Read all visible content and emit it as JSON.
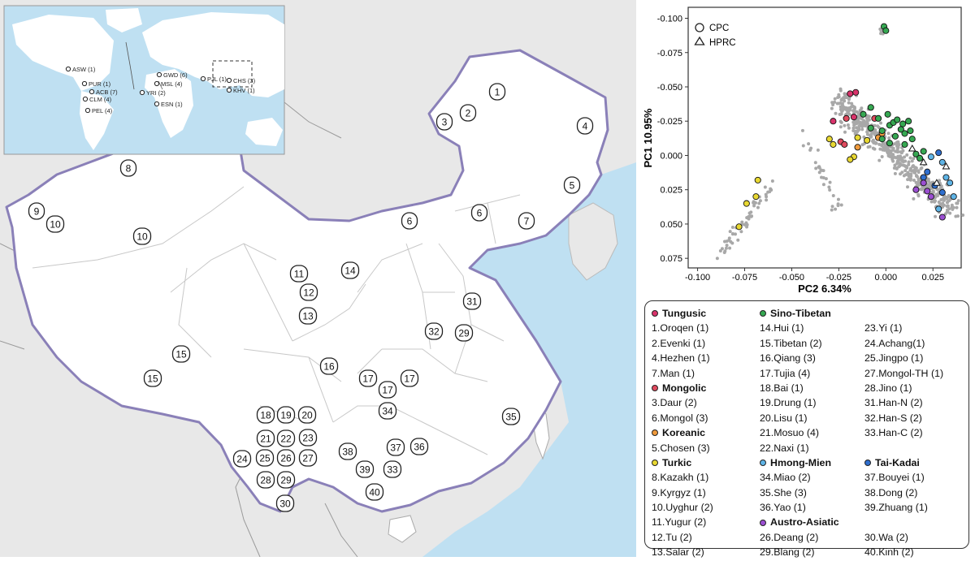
{
  "map": {
    "inset_samples": [
      {
        "id": "asw",
        "label": "ASW (1)"
      },
      {
        "id": "pur",
        "label": "PUR (1)"
      },
      {
        "id": "acb",
        "label": "ACB (7)"
      },
      {
        "id": "clm",
        "label": "CLM (4)"
      },
      {
        "id": "pel",
        "label": "PEL (4)"
      },
      {
        "id": "gwd",
        "label": "GWD (6)"
      },
      {
        "id": "msl",
        "label": "MSL (4)"
      },
      {
        "id": "yri",
        "label": "YRI (2)"
      },
      {
        "id": "esn",
        "label": "ESN (1)"
      },
      {
        "id": "pjl",
        "label": "PJL (1)"
      },
      {
        "id": "chs",
        "label": "CHS (3)"
      },
      {
        "id": "khv",
        "label": "KHV (1)"
      }
    ],
    "markers": [
      "1",
      "2",
      "3",
      "4",
      "5",
      "6",
      "6",
      "7",
      "8",
      "9",
      "10",
      "10",
      "11",
      "12",
      "13",
      "14",
      "15",
      "15",
      "16",
      "17",
      "17",
      "17",
      "18",
      "19",
      "20",
      "21",
      "22",
      "23",
      "24",
      "25",
      "26",
      "27",
      "28",
      "29",
      "30",
      "31",
      "32",
      "29",
      "33",
      "34",
      "35",
      "36",
      "37",
      "38",
      "39",
      "40"
    ]
  },
  "chart_data": {
    "type": "scatter",
    "xlabel": "PC2  6.34%",
    "ylabel": "PC1  10.95%",
    "x_ticks": [
      "-0.100",
      "-0.075",
      "-0.050",
      "-0.025",
      "0.000",
      "0.025"
    ],
    "y_ticks": [
      "-0.100",
      "-0.075",
      "-0.050",
      "-0.025",
      "0.000",
      "0.025",
      "0.050",
      "0.075"
    ],
    "xlim": [
      -0.105,
      0.04
    ],
    "ylim": [
      -0.108,
      0.082
    ],
    "y_inverted": true,
    "shape_legend": [
      {
        "shape": "circle",
        "label": "CPC"
      },
      {
        "shape": "triangle",
        "label": "HPRC"
      }
    ],
    "group_colors": {
      "Tungusic": "#d9336b",
      "Mongolic": "#e04a5e",
      "Sino-Tibetan": "#36a852",
      "Koreanic": "#ef9a3c",
      "Turkic": "#e8d832",
      "Hmong-Mien": "#5fb4e6",
      "Tai-Kadai": "#2f6fcf",
      "Austro-Asiatic": "#9b4fd1"
    },
    "background_color": "#a8a8a8",
    "series": [
      {
        "name": "Tungusic",
        "points": [
          [
            -0.028,
            -0.025
          ],
          [
            -0.019,
            -0.045
          ],
          [
            -0.016,
            -0.046
          ],
          [
            -0.017,
            -0.028
          ]
        ]
      },
      {
        "name": "Mongolic",
        "points": [
          [
            -0.021,
            -0.027
          ],
          [
            -0.024,
            -0.01
          ],
          [
            -0.022,
            -0.008
          ],
          [
            -0.006,
            -0.027
          ]
        ]
      },
      {
        "name": "Koreanic",
        "points": [
          [
            -0.015,
            -0.006
          ],
          [
            -0.004,
            -0.013
          ],
          [
            -0.002,
            -0.016
          ]
        ]
      },
      {
        "name": "Turkic",
        "points": [
          [
            -0.068,
            0.018
          ],
          [
            -0.069,
            0.03
          ],
          [
            -0.074,
            0.035
          ],
          [
            -0.078,
            0.052
          ],
          [
            -0.017,
            0.001
          ],
          [
            -0.019,
            0.003
          ],
          [
            -0.028,
            -0.008
          ],
          [
            -0.03,
            -0.012
          ],
          [
            -0.015,
            -0.013
          ],
          [
            -0.01,
            -0.011
          ]
        ]
      },
      {
        "name": "Sino-Tibetan",
        "points": [
          [
            -0.001,
            -0.094
          ],
          [
            0.0,
            -0.091
          ],
          [
            -0.012,
            -0.03
          ],
          [
            -0.008,
            -0.035
          ],
          [
            -0.004,
            -0.027
          ],
          [
            -0.002,
            -0.018
          ],
          [
            0.002,
            -0.022
          ],
          [
            0.004,
            -0.024
          ],
          [
            0.006,
            -0.026
          ],
          [
            0.008,
            -0.019
          ],
          [
            0.009,
            -0.023
          ],
          [
            0.01,
            -0.016
          ],
          [
            0.005,
            -0.014
          ],
          [
            0.013,
            -0.018
          ],
          [
            0.014,
            -0.012
          ],
          [
            0.01,
            -0.008
          ],
          [
            0.002,
            -0.009
          ],
          [
            -0.002,
            -0.012
          ],
          [
            -0.008,
            -0.02
          ],
          [
            0.016,
            -0.001
          ],
          [
            0.018,
            0.002
          ],
          [
            0.02,
            -0.003
          ],
          [
            0.012,
            -0.025
          ],
          [
            0.001,
            -0.03
          ]
        ]
      },
      {
        "name": "Hmong-Mien",
        "points": [
          [
            0.024,
            0.001
          ],
          [
            0.03,
            0.005
          ],
          [
            0.032,
            0.016
          ],
          [
            0.034,
            0.02
          ],
          [
            0.036,
            0.03
          ],
          [
            0.028,
            0.039
          ]
        ]
      },
      {
        "name": "Tai-Kadai",
        "points": [
          [
            0.028,
            -0.002
          ],
          [
            0.022,
            0.012
          ],
          [
            0.02,
            0.016
          ],
          [
            0.026,
            0.022
          ],
          [
            0.03,
            0.027
          ]
        ]
      },
      {
        "name": "Austro-Asiatic",
        "points": [
          [
            0.02,
            0.02
          ],
          [
            0.022,
            0.026
          ],
          [
            0.024,
            0.03
          ],
          [
            0.03,
            0.045
          ],
          [
            0.016,
            0.025
          ]
        ]
      }
    ],
    "hprc_points": [
      [
        0.014,
        -0.005
      ],
      [
        0.02,
        0.005
      ],
      [
        0.027,
        0.02
      ],
      [
        0.032,
        0.008
      ]
    ]
  },
  "legend": {
    "col1": [
      {
        "head": true,
        "group": "Tungusic",
        "text": "Tungusic"
      },
      {
        "text": "1.Oroqen (1)"
      },
      {
        "text": "2.Evenki (1)"
      },
      {
        "text": "4.Hezhen (1)"
      },
      {
        "text": "7.Man (1)"
      },
      {
        "head": true,
        "group": "Mongolic",
        "text": "Mongolic"
      },
      {
        "text": "3.Daur (2)"
      },
      {
        "text": "6.Mongol  (3)"
      },
      {
        "head": true,
        "group": "Koreanic",
        "text": "Koreanic"
      },
      {
        "text": "5.Chosen (3)"
      },
      {
        "head": true,
        "group": "Turkic",
        "text": "Turkic"
      },
      {
        "text": "8.Kazakh (1)"
      },
      {
        "text": "9.Kyrgyz (1)"
      },
      {
        "text": "10.Uyghur (2)"
      },
      {
        "text": "11.Yugur (2)"
      },
      {
        "text": "12.Tu  (2)"
      },
      {
        "text": "13.Salar (2)"
      }
    ],
    "col2": [
      {
        "head": true,
        "group": "Sino-Tibetan",
        "text": "Sino-Tibetan"
      },
      {
        "text": "14.Hui (1)"
      },
      {
        "text": "15.Tibetan (2)"
      },
      {
        "text": "16.Qiang (3)"
      },
      {
        "text": "17.Tujia  (4)"
      },
      {
        "text": "18.Bai (1)"
      },
      {
        "text": "19.Drung (1)"
      },
      {
        "text": "20.Lisu (1)"
      },
      {
        "text": "21.Mosuo (4)"
      },
      {
        "text": "22.Naxi (1)"
      },
      {
        "head": true,
        "group": "Hmong-Mien",
        "text": "Hmong-Mien"
      },
      {
        "text": "34.Miao (2)"
      },
      {
        "text": "35.She (3)"
      },
      {
        "text": "36.Yao (1)"
      },
      {
        "head": true,
        "group": "Austro-Asiatic",
        "text": "Austro-Asiatic"
      },
      {
        "text": "26.Deang (2)"
      },
      {
        "text": "29.Blang (2)"
      }
    ],
    "col3": [
      {
        "text": ""
      },
      {
        "text": "23.Yi (1)"
      },
      {
        "text": "24.Achang(1)"
      },
      {
        "text": "25.Jingpo (1)"
      },
      {
        "text": "27.Mongol-TH (1)"
      },
      {
        "text": "28.Jino (1)"
      },
      {
        "text": "31.Han-N (2)"
      },
      {
        "text": "32.Han-S (2)"
      },
      {
        "text": "33.Han-C (2)"
      },
      {
        "text": ""
      },
      {
        "head": true,
        "group": "Tai-Kadai",
        "text": "Tai-Kadai"
      },
      {
        "text": "37.Bouyei (1)"
      },
      {
        "text": "38.Dong (2)"
      },
      {
        "text": "39.Zhuang (1)"
      },
      {
        "text": ""
      },
      {
        "text": "30.Wa (2)"
      },
      {
        "text": "40.Kinh (2)"
      }
    ]
  }
}
